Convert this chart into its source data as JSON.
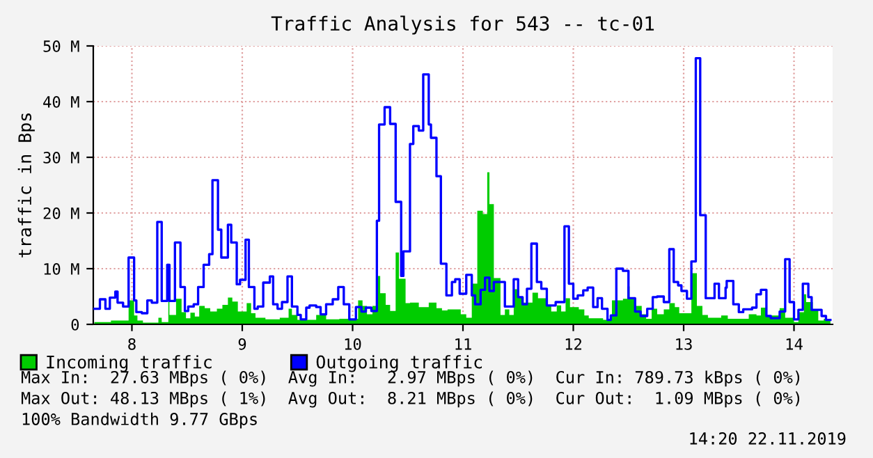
{
  "chart_data": {
    "type": "step",
    "title": "Traffic Analysis for 543 -- tc-01",
    "ylabel": "traffic in Bps",
    "xlim": [
      7.65,
      14.35
    ],
    "xticks": [
      8,
      9,
      10,
      11,
      12,
      13,
      14
    ],
    "ylim": [
      0,
      50
    ],
    "yticks": [
      0,
      {
        "value": 10,
        "label": "10 M"
      },
      {
        "value": 20,
        "label": "20 M"
      },
      {
        "value": 30,
        "label": "30 M"
      },
      {
        "value": 40,
        "label": "40 M"
      },
      {
        "value": 50,
        "label": "50 M"
      }
    ],
    "grid": true,
    "legend": "bottom left",
    "series": [
      {
        "name": "Incoming traffic",
        "type": "area",
        "color": "#00cc00",
        "x": [
          7.66,
          7.81,
          7.97,
          8.02,
          8.05,
          8.1,
          8.24,
          8.27,
          8.33,
          8.34,
          8.4,
          8.45,
          8.49,
          8.53,
          8.57,
          8.61,
          8.66,
          8.71,
          8.77,
          8.82,
          8.87,
          8.91,
          8.96,
          9.04,
          9.08,
          9.12,
          9.21,
          9.34,
          9.42,
          9.45,
          9.5,
          9.67,
          9.76,
          9.88,
          10.05,
          10.09,
          10.13,
          10.18,
          10.23,
          10.25,
          10.3,
          10.34,
          10.39,
          10.42,
          10.48,
          10.52,
          10.6,
          10.69,
          10.76,
          10.81,
          10.86,
          10.98,
          11.03,
          11.08,
          11.13,
          11.18,
          11.22,
          11.24,
          11.28,
          11.34,
          11.38,
          11.42,
          11.46,
          11.51,
          11.55,
          11.63,
          11.68,
          11.76,
          11.8,
          11.85,
          11.89,
          11.93,
          11.97,
          12.05,
          12.1,
          12.14,
          12.27,
          12.35,
          12.45,
          12.49,
          12.51,
          12.57,
          12.62,
          12.66,
          12.71,
          12.76,
          12.82,
          12.87,
          12.92,
          12.96,
          13.07,
          13.12,
          13.17,
          13.22,
          13.34,
          13.4,
          13.59,
          13.66,
          13.7,
          13.75,
          13.87,
          13.92,
          14.0,
          14.04,
          14.09,
          14.11,
          14.17,
          14.22,
          14.27,
          14.33
        ],
        "values": [
          0.4,
          0.7,
          4.3,
          1.6,
          0.7,
          0.3,
          1.2,
          0.4,
          5.2,
          1.7,
          4.6,
          2.2,
          1.1,
          2.1,
          1.4,
          3.3,
          2.9,
          2.3,
          2.8,
          3.5,
          4.8,
          4.1,
          2.3,
          3.8,
          2.0,
          1.2,
          0.9,
          1.2,
          2.8,
          1.7,
          0.8,
          1.7,
          0.9,
          1.0,
          4.3,
          3.3,
          1.8,
          3.3,
          8.7,
          5.6,
          3.5,
          2.4,
          12.9,
          8.2,
          3.8,
          3.9,
          3.1,
          3.9,
          2.9,
          2.5,
          2.7,
          1.8,
          1.2,
          7.3,
          20.4,
          19.8,
          27.3,
          21.6,
          8.3,
          1.7,
          2.7,
          1.7,
          6.3,
          4.9,
          3.9,
          5.7,
          4.7,
          3.3,
          2.3,
          3.4,
          2.3,
          4.7,
          3.1,
          2.7,
          1.6,
          1.1,
          0.8,
          4.3,
          4.6,
          6.8,
          4.7,
          3.3,
          1.8,
          1.0,
          2.8,
          1.8,
          2.7,
          3.8,
          3.1,
          2.0,
          9.2,
          3.3,
          1.7,
          1.2,
          1.6,
          1.0,
          1.8,
          1.6,
          3.0,
          1.6,
          2.9,
          1.2,
          0.4,
          2.2,
          5.4,
          4.0,
          2.6,
          0.7,
          1.0,
          1.0
        ]
      },
      {
        "name": "Outgoing traffic",
        "color": "#0000ff",
        "x": [
          7.66,
          7.71,
          7.76,
          7.8,
          7.85,
          7.87,
          7.92,
          7.97,
          8.02,
          8.04,
          8.09,
          8.14,
          8.18,
          8.23,
          8.27,
          8.32,
          8.34,
          8.39,
          8.44,
          8.48,
          8.51,
          8.56,
          8.6,
          8.65,
          8.7,
          8.73,
          8.78,
          8.81,
          8.87,
          8.9,
          8.95,
          8.98,
          9.03,
          9.06,
          9.11,
          9.14,
          9.19,
          9.25,
          9.28,
          9.32,
          9.36,
          9.41,
          9.45,
          9.5,
          9.53,
          9.58,
          9.61,
          9.67,
          9.71,
          9.76,
          9.82,
          9.87,
          9.92,
          9.97,
          10.03,
          10.08,
          10.12,
          10.17,
          10.22,
          10.24,
          10.29,
          10.34,
          10.39,
          10.44,
          10.46,
          10.52,
          10.55,
          10.6,
          10.64,
          10.69,
          10.71,
          10.76,
          10.8,
          10.85,
          10.9,
          10.93,
          10.97,
          11.03,
          11.08,
          11.11,
          11.16,
          11.2,
          11.24,
          11.28,
          11.38,
          11.42,
          11.46,
          11.5,
          11.54,
          11.58,
          11.62,
          11.67,
          11.71,
          11.76,
          11.84,
          11.92,
          11.96,
          12.0,
          12.04,
          12.09,
          12.13,
          12.18,
          12.22,
          12.26,
          12.31,
          12.34,
          12.39,
          12.45,
          12.5,
          12.56,
          12.61,
          12.67,
          12.72,
          12.76,
          12.82,
          12.87,
          12.91,
          12.95,
          12.98,
          13.03,
          13.07,
          13.11,
          13.15,
          13.2,
          13.28,
          13.32,
          13.38,
          13.39,
          13.45,
          13.5,
          13.54,
          13.62,
          13.66,
          13.7,
          13.75,
          13.79,
          13.87,
          13.92,
          13.96,
          14.0,
          14.04,
          14.08,
          14.13,
          14.16,
          14.25,
          14.29,
          14.33
        ],
        "values": [
          2.8,
          4.5,
          2.8,
          4.8,
          5.9,
          3.9,
          3.2,
          12.0,
          4.3,
          2.2,
          2.0,
          4.3,
          3.9,
          18.4,
          4.2,
          10.7,
          4.2,
          14.7,
          6.7,
          2.4,
          3.2,
          3.6,
          6.7,
          10.7,
          12.6,
          25.9,
          17.0,
          12.0,
          17.9,
          14.7,
          7.2,
          8.0,
          15.2,
          6.7,
          2.8,
          3.2,
          7.5,
          8.6,
          3.6,
          2.8,
          4.0,
          8.6,
          3.2,
          1.7,
          0.9,
          3.0,
          3.4,
          3.1,
          1.8,
          3.6,
          4.5,
          6.7,
          3.6,
          0.9,
          3.1,
          2.3,
          3.0,
          2.4,
          18.6,
          35.9,
          39.0,
          36.0,
          22.0,
          8.7,
          13.1,
          32.4,
          35.6,
          34.8,
          44.9,
          35.9,
          33.5,
          26.6,
          10.9,
          5.2,
          7.6,
          8.1,
          5.5,
          8.9,
          5.2,
          3.6,
          6.2,
          8.4,
          6.0,
          7.6,
          3.2,
          3.2,
          8.1,
          4.9,
          3.6,
          6.4,
          14.5,
          7.6,
          6.4,
          3.4,
          4.0,
          17.6,
          7.3,
          4.6,
          5.2,
          6.1,
          6.6,
          3.1,
          4.7,
          2.8,
          0.8,
          1.6,
          10.0,
          9.6,
          4.7,
          2.3,
          1.5,
          2.8,
          4.9,
          5.0,
          4.0,
          13.5,
          7.6,
          7.0,
          6.0,
          4.6,
          11.3,
          47.8,
          19.6,
          4.7,
          7.3,
          4.7,
          6.6,
          7.8,
          3.6,
          2.2,
          2.7,
          3.0,
          5.4,
          6.2,
          1.5,
          1.1,
          2.3,
          11.7,
          4.0,
          0.9,
          2.6,
          7.3,
          4.9,
          2.6,
          1.5,
          0.8,
          0.8
        ]
      }
    ],
    "annotations": [
      "Max In:  27.63 MBps ( 0%)  Avg In:   2.97 MBps ( 0%)  Cur In: 789.73 kBps ( 0%)",
      "Max Out: 48.13 MBps ( 1%)  Avg Out:  8.21 MBps ( 0%)  Cur Out:  1.09 MBps ( 0%)",
      "100% Bandwidth 9.77 GBps",
      "14:20 22.11.2019"
    ]
  }
}
